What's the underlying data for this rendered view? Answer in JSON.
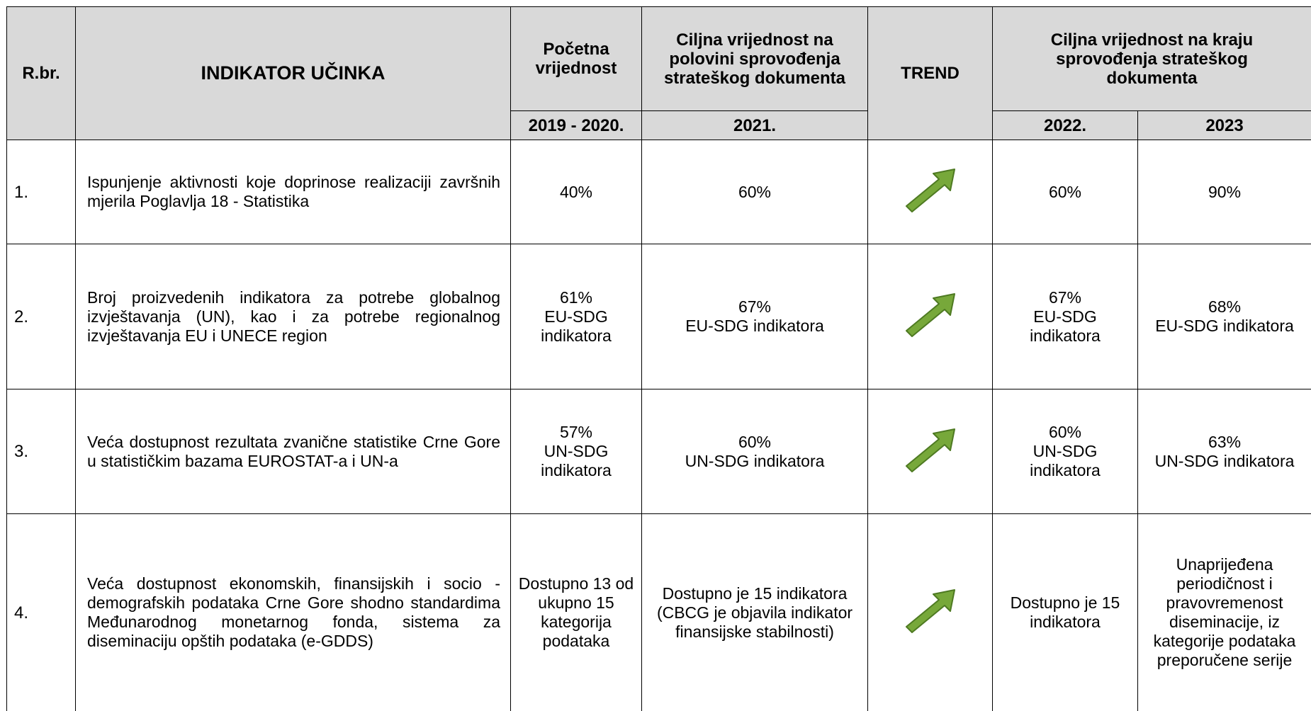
{
  "table": {
    "header": {
      "number": "R.br.",
      "indicator": "INDIKATOR UČINKA",
      "baseline": "Početna vrijednost",
      "midterm": "Ciljna vrijednost na polovini sprovođenja strateškog dokumenta",
      "trend": "TREND",
      "final": "Ciljna vrijednost na kraju sprovođenja strateškog dokumenta",
      "years": [
        "2019 - 2020.",
        "2021.",
        "2022.",
        "2023"
      ]
    },
    "rows": [
      [
        "1.",
        "Ispunjenje aktivnosti koje doprinose realizaciji završnih mjerila Poglavlja 18 - Statistika",
        "40%",
        "60%",
        "60%",
        "90%"
      ],
      [
        "2.",
        "Broj proizvedenih indikatora za potrebe globalnog izvještavanja (UN), kao i za potrebe regionalnog izvještavanja EU i UNECE region",
        "61%\nEU-SDG indikatora",
        "67%\nEU-SDG indikatora",
        "67%\nEU-SDG indikatora",
        "68%\nEU-SDG indikatora"
      ],
      [
        "3.",
        "Veća dostupnost rezultata zvanične statistike Crne Gore u statističkim bazama EUROSTAT-a i UN-a",
        "57%\nUN-SDG indikatora",
        "60%\nUN-SDG indikatora",
        "60%\nUN-SDG indikatora",
        "63%\nUN-SDG indikatora"
      ],
      [
        "4.",
        "Veća dostupnost ekonomskih, finansijskih i socio - demografskih podataka Crne Gore shodno standardima Međunarodnog monetarnog fonda, sistema za diseminaciju opštih podataka (e-GDDS)",
        "Dostupno 13 od ukupno 15 kategorija podataka",
        "Dostupno je 15 indikatora\n(CBCG je objavila indikator finansijske stabilnosti)",
        "Dostupno je 15 indikatora",
        "Unaprijeđena periodičnost i pravovremenost diseminacije, iz kategorije podataka preporučene serije"
      ]
    ]
  }
}
